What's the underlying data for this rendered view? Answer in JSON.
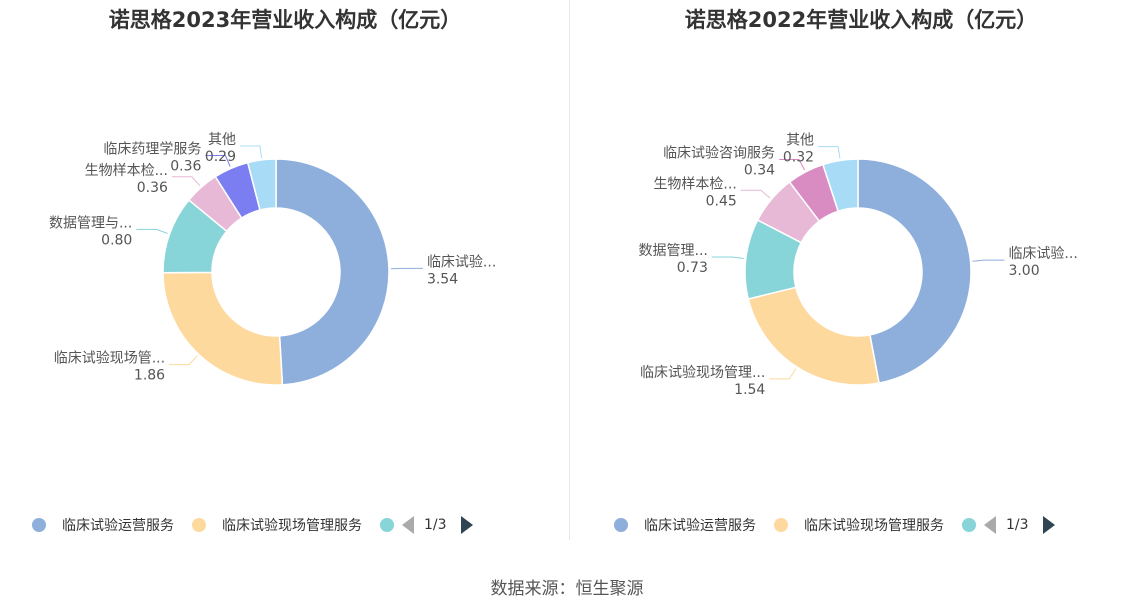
{
  "source": "数据来源：恒生聚源",
  "colors": [
    "#8eaedc",
    "#fdd99e",
    "#87d4d9",
    "#e8b8d7",
    "#7b7ef0",
    "#a8dcf6",
    "#d98cc2"
  ],
  "chart_data": [
    {
      "type": "pie",
      "title": "诺思格2023年营业收入构成（亿元）",
      "slices": [
        {
          "name": "临床试验运营服务",
          "label": "临床试验...",
          "value": 3.54,
          "value_label": "3.54",
          "color": "#8eaedc"
        },
        {
          "name": "临床试验现场管理服务",
          "label": "临床试验现场管...",
          "value": 1.86,
          "value_label": "1.86",
          "color": "#fdd99e"
        },
        {
          "name": "数据管理与...",
          "label": "数据管理与...",
          "value": 0.8,
          "value_label": "0.80",
          "color": "#87d4d9"
        },
        {
          "name": "生物样本检...",
          "label": "生物样本检...",
          "value": 0.36,
          "value_label": "0.36",
          "color": "#e8b8d7"
        },
        {
          "name": "临床药理学服务",
          "label": "临床药理学服务",
          "value": 0.36,
          "value_label": "0.36",
          "color": "#7b7ef0"
        },
        {
          "name": "其他",
          "label": "其他",
          "value": 0.29,
          "value_label": "0.29",
          "color": "#a8dcf6"
        }
      ],
      "legend": {
        "items": [
          "临床试验运营服务",
          "临床试验现场管理服务"
        ],
        "page": "1/3"
      }
    },
    {
      "type": "pie",
      "title": "诺思格2022年营业收入构成（亿元）",
      "slices": [
        {
          "name": "临床试验运营服务",
          "label": "临床试验...",
          "value": 3.0,
          "value_label": "3.00",
          "color": "#8eaedc"
        },
        {
          "name": "临床试验现场管理服务",
          "label": "临床试验现场管理...",
          "value": 1.54,
          "value_label": "1.54",
          "color": "#fdd99e"
        },
        {
          "name": "数据管理...",
          "label": "数据管理...",
          "value": 0.73,
          "value_label": "0.73",
          "color": "#87d4d9"
        },
        {
          "name": "生物样本检...",
          "label": "生物样本检...",
          "value": 0.45,
          "value_label": "0.45",
          "color": "#e8b8d7"
        },
        {
          "name": "临床试验咨询服务",
          "label": "临床试验咨询服务",
          "value": 0.34,
          "value_label": "0.34",
          "color": "#d98cc2"
        },
        {
          "name": "其他",
          "label": "其他",
          "value": 0.32,
          "value_label": "0.32",
          "color": "#a8dcf6"
        }
      ],
      "legend": {
        "items": [
          "临床试验运营服务",
          "临床试验现场管理服务"
        ],
        "page": "1/3"
      }
    }
  ]
}
